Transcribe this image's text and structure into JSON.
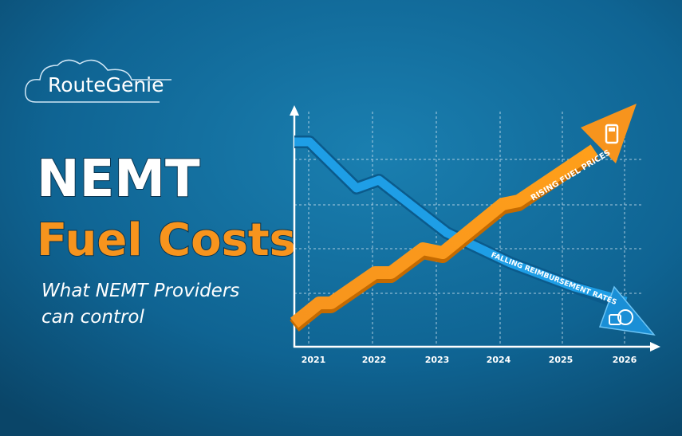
{
  "brand": "RouteGenie",
  "headline": {
    "line1": "NEMT",
    "line2": "Fuel Costs"
  },
  "subtitle": {
    "line1": "What NEMT Providers",
    "line2": "can control"
  },
  "graphic": {
    "years": [
      "2021",
      "2022",
      "2023",
      "2024",
      "2025",
      "2026"
    ],
    "rising_label": "RISING FUEL PRICES",
    "falling_label": "FALLING REIMBURSEMENT RATES"
  }
}
